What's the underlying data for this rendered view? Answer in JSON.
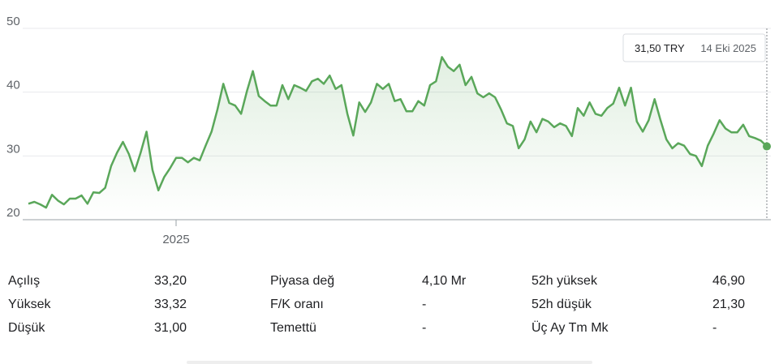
{
  "chart_data": {
    "type": "line",
    "color": "#5aa75a",
    "grid": true,
    "ylim": [
      20,
      50
    ],
    "yticks": [
      20,
      30,
      40,
      50
    ],
    "xlim": [
      0,
      125
    ],
    "xticks": [
      {
        "value": 25,
        "label": "2025"
      }
    ],
    "values": [
      22.5,
      22.8,
      22.4,
      21.9,
      23.9,
      23.0,
      22.4,
      23.3,
      23.3,
      23.8,
      22.5,
      24.3,
      24.2,
      25.0,
      28.4,
      30.5,
      32.2,
      30.3,
      27.6,
      30.5,
      33.8,
      27.8,
      24.6,
      26.7,
      28.1,
      29.7,
      29.7,
      29.0,
      29.7,
      29.3,
      31.6,
      33.8,
      37.3,
      41.3,
      38.3,
      37.9,
      36.6,
      40.2,
      43.3,
      39.4,
      38.6,
      37.9,
      37.9,
      41.1,
      38.9,
      41.1,
      40.7,
      40.2,
      41.7,
      42.1,
      41.3,
      42.6,
      40.5,
      41.1,
      36.6,
      33.2,
      38.4,
      36.9,
      38.4,
      41.3,
      40.5,
      41.3,
      38.6,
      38.9,
      37.0,
      37.0,
      38.6,
      37.9,
      41.1,
      41.7,
      45.5,
      44.0,
      43.3,
      44.3,
      41.1,
      42.4,
      39.8,
      39.2,
      39.8,
      39.2,
      37.3,
      35.1,
      34.7,
      31.2,
      32.6,
      35.4,
      33.7,
      35.8,
      35.4,
      34.5,
      35.1,
      34.7,
      33.1,
      37.5,
      36.3,
      38.4,
      36.6,
      36.3,
      37.5,
      38.2,
      40.7,
      37.9,
      40.7,
      35.4,
      33.8,
      35.6,
      38.9,
      35.6,
      32.6,
      31.2,
      32.0,
      31.6,
      30.3,
      30.0,
      28.4,
      31.6,
      33.5,
      35.6,
      34.3,
      33.7,
      33.7,
      34.9,
      33.1,
      32.8,
      32.4,
      31.5
    ],
    "tooltip": {
      "price": "31,50 TRY",
      "date": "14 Eki 2025"
    }
  },
  "stats": {
    "rows": [
      [
        "Açılış",
        "33,20",
        "Piyasa değ",
        "4,10 Mr",
        "52h yüksek",
        "46,90"
      ],
      [
        "Yüksek",
        "33,32",
        "F/K oranı",
        "-",
        "52h düşük",
        "21,30"
      ],
      [
        "Düşük",
        "31,00",
        "Temettü",
        "-",
        "Üç Ay Tm Mk",
        "-"
      ]
    ]
  }
}
